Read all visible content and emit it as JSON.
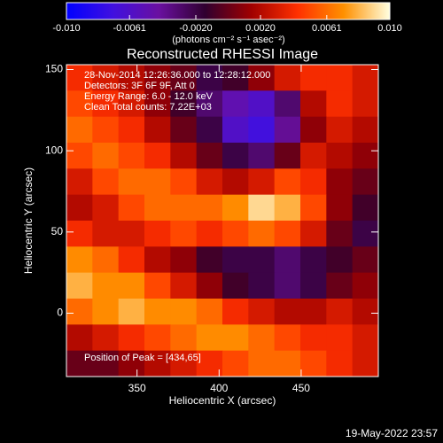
{
  "chart_data": {
    "type": "heatmap",
    "title": "Reconstructed RHESSI Image",
    "x_label": "Heliocentric X (arcsec)",
    "y_label": "Heliocentric Y (arcsec)",
    "colorbar_label": "(photons cm⁻² s⁻¹ asec⁻²)",
    "annotations": [
      "28-Nov-2014 12:26:36.000 to 12:28:12.000",
      "Detectors: 3F 6F 9F, Att 0",
      "Energy Range: 6.0 - 12.0 keV",
      "Clean    Total counts: 7.22E+03"
    ],
    "peak_label": "Position of Peak = [434,65]",
    "footer": "19-May-2022 23:57",
    "xlim": [
      307,
      497
    ],
    "ylim": [
      -39,
      153
    ],
    "xticks": [
      350,
      400,
      450
    ],
    "yticks": [
      0,
      50,
      100,
      150
    ],
    "zlim": [
      -0.01,
      0.01
    ],
    "zticks": [
      {
        "value": -0.01,
        "label": "-0.010"
      },
      -0.0061,
      {
        "value": -0.002,
        "label": "-0.0020"
      },
      {
        "value": 0.002,
        "label": "0.0020"
      },
      0.0061,
      {
        "value": 0.01,
        "label": "0.010"
      }
    ],
    "colorscale": [
      "#0000ff",
      "#4010e0",
      "#6a10a0",
      "#300030",
      "#a00000",
      "#ff3000",
      "#ff9000",
      "#ffffe0"
    ],
    "z": [
      [
        0.004,
        0.003,
        0.002,
        0.001,
        0.0,
        -0.002,
        -0.001,
        0.001,
        0.003,
        0.004,
        0.004,
        0.003
      ],
      [
        0.005,
        0.004,
        0.003,
        0.001,
        -0.001,
        -0.003,
        -0.005,
        -0.006,
        -0.003,
        0.002,
        0.004,
        0.003
      ],
      [
        0.006,
        0.005,
        0.004,
        0.002,
        0.0,
        -0.002,
        -0.006,
        -0.007,
        -0.004,
        0.001,
        0.003,
        0.002
      ],
      [
        0.005,
        0.006,
        0.005,
        0.004,
        0.002,
        0.0,
        -0.002,
        -0.003,
        0.0,
        0.003,
        0.002,
        0.001
      ],
      [
        0.003,
        0.005,
        0.006,
        0.006,
        0.005,
        0.003,
        0.002,
        0.003,
        0.005,
        0.004,
        0.001,
        0.0
      ],
      [
        0.002,
        0.003,
        0.005,
        0.006,
        0.006,
        0.006,
        0.007,
        0.009,
        0.008,
        0.005,
        0.001,
        -0.001
      ],
      [
        0.004,
        0.003,
        0.003,
        0.004,
        0.005,
        0.004,
        0.005,
        0.006,
        0.005,
        0.003,
        0.0,
        -0.002
      ],
      [
        0.007,
        0.006,
        0.004,
        0.002,
        0.001,
        -0.001,
        -0.002,
        -0.002,
        -0.003,
        -0.002,
        -0.001,
        0.0
      ],
      [
        0.008,
        0.007,
        0.007,
        0.005,
        0.003,
        0.001,
        -0.001,
        -0.002,
        -0.003,
        -0.002,
        0.0,
        0.001
      ],
      [
        0.006,
        0.007,
        0.008,
        0.007,
        0.007,
        0.006,
        0.004,
        0.003,
        0.002,
        0.002,
        0.003,
        0.002
      ],
      [
        0.002,
        0.003,
        0.004,
        0.005,
        0.006,
        0.007,
        0.007,
        0.006,
        0.005,
        0.004,
        0.004,
        0.003
      ],
      [
        0.0,
        0.0,
        0.001,
        0.002,
        0.003,
        0.004,
        0.005,
        0.006,
        0.006,
        0.005,
        0.004,
        0.003
      ]
    ]
  }
}
